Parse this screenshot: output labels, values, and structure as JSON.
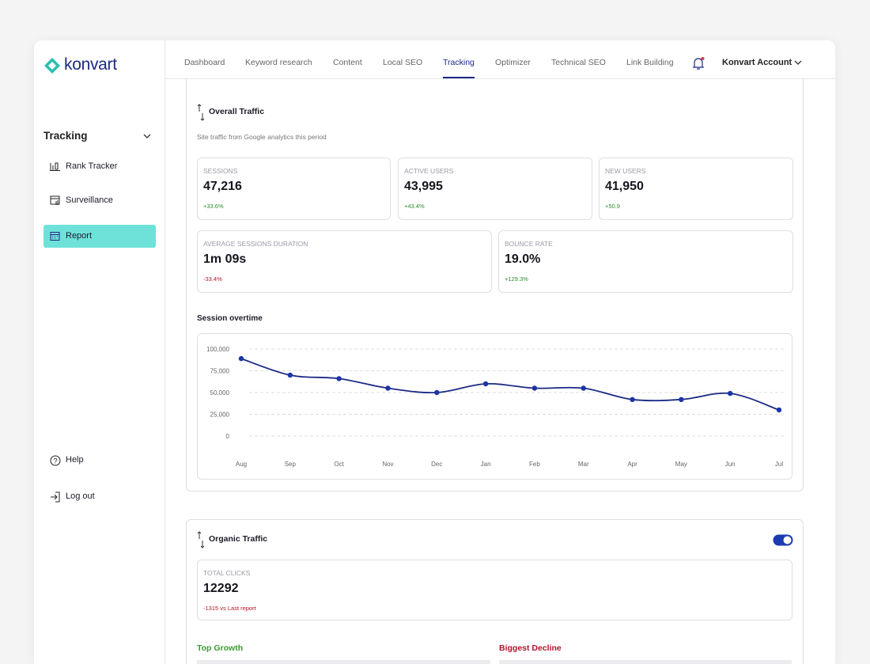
{
  "brand": "konvart",
  "nav": {
    "items": [
      "Dashboard",
      "Keyword research",
      "Content",
      "Local SEO",
      "Tracking",
      "Optimizer",
      "Technical SEO",
      "Link Building"
    ],
    "active": 4,
    "account": "Konvart Account"
  },
  "sidebar": {
    "section": "Tracking",
    "items": [
      "Rank Tracker",
      "Surveillance",
      "Report"
    ],
    "active": 2,
    "footer": [
      "Help",
      "Log out"
    ]
  },
  "overall": {
    "title": "Overall Traffic",
    "subtitle": "Site traffic from Google analytics this period",
    "metrics": [
      {
        "label": "SESSIONS",
        "value": "47,216",
        "change": "+33.6%"
      },
      {
        "label": "ACTIVE USERS",
        "value": "43,995",
        "change": "+43.4%"
      },
      {
        "label": "NEW USERS",
        "value": "41,950",
        "change": "+50.9"
      },
      {
        "label": "AVERAGE SESSIONS DURATION",
        "value": "1m 09s",
        "change": "-33.4%"
      },
      {
        "label": "BOUNCE RATE",
        "value": "19.0%",
        "change": "+129.3%"
      }
    ]
  },
  "chart_data": {
    "type": "line",
    "title": "Session overtime",
    "categories": [
      "Aug",
      "Sep",
      "Oct",
      "Nov",
      "Dec",
      "Jan",
      "Feb",
      "Mar",
      "Apr",
      "May",
      "Jun",
      "Jul"
    ],
    "values": [
      89000,
      70000,
      66000,
      55000,
      50000,
      60000,
      55000,
      55000,
      42000,
      42000,
      49000,
      30000
    ],
    "color": "#1b2a84",
    "ylim": [
      0,
      100000
    ],
    "yticks": [
      0,
      {
        "value": 25000,
        "label": "25,000"
      },
      {
        "value": 50000,
        "label": "50,000"
      },
      {
        "value": 75000,
        "label": "75,000"
      },
      {
        "value": 100000,
        "label": "100,000"
      }
    ],
    "grid": true
  },
  "organic": {
    "title": "Organic Traffic",
    "metric": {
      "label": "TOTAL CLICKS",
      "value": "12292",
      "change": "-1315 vs Last report"
    },
    "top_growth": "Top Growth",
    "biggest_decline": "Biggest Decline"
  }
}
